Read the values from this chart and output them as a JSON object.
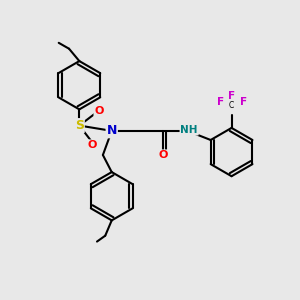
{
  "bg_color": "#e8e8e8",
  "line_color": "#000000",
  "bond_width": 1.5,
  "atom_colors": {
    "N": "#0000cc",
    "O": "#ff0000",
    "S": "#ccbb00",
    "H": "#008080",
    "F": "#cc00cc",
    "C": "#000000"
  },
  "fig_width": 3.0,
  "fig_height": 3.0,
  "dpi": 100
}
